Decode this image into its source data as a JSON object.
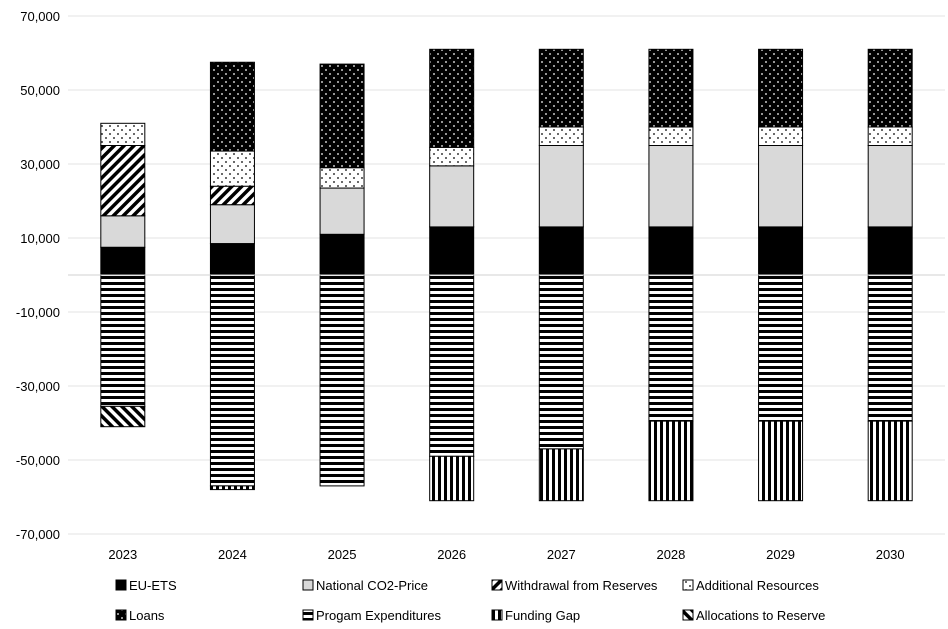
{
  "chart_data": {
    "type": "bar",
    "stacked": true,
    "categories": [
      "2023",
      "2024",
      "2025",
      "2026",
      "2027",
      "2028",
      "2029",
      "2030"
    ],
    "ylim": [
      -70000,
      70000
    ],
    "yticks": [
      70000,
      50000,
      30000,
      10000,
      -10000,
      -30000,
      -50000,
      -70000
    ],
    "ytick_labels": [
      "70,000",
      "50,000",
      "30,000",
      "10,000",
      "-10,000",
      "-30,000",
      "-50,000",
      "-70,000"
    ],
    "grid": true,
    "legend_position": "bottom",
    "series": [
      {
        "name": "EU-ETS",
        "pattern": "solid-black",
        "values": [
          7500,
          8500,
          11000,
          13000,
          13000,
          13000,
          13000,
          13000
        ]
      },
      {
        "name": "National CO2-Price",
        "pattern": "solid-grey",
        "values": [
          8500,
          10500,
          12500,
          16500,
          22000,
          22000,
          22000,
          22000
        ]
      },
      {
        "name": "Withdrawal from Reserves",
        "pattern": "diagonal-up",
        "values": [
          19000,
          5000,
          0,
          0,
          0,
          0,
          0,
          0
        ]
      },
      {
        "name": "Additional Resources",
        "pattern": "sparse-dots",
        "values": [
          6000,
          9500,
          5500,
          5000,
          5000,
          5000,
          5000,
          5000
        ]
      },
      {
        "name": "Loans",
        "pattern": "dense-dots",
        "values": [
          0,
          24000,
          28000,
          26500,
          21000,
          21000,
          21000,
          21000
        ]
      },
      {
        "name": "Progam Expenditures",
        "pattern": "horizontal-stripes",
        "values": [
          -35500,
          -57000,
          -57000,
          -49000,
          -47000,
          -39500,
          -39500,
          -39500
        ]
      },
      {
        "name": "Funding Gap",
        "pattern": "vertical-stripes",
        "values": [
          0,
          -1000,
          0,
          -12000,
          -14000,
          -21500,
          -21500,
          -21500
        ]
      },
      {
        "name": "Allocations to Reserve",
        "pattern": "diagonal-down",
        "values": [
          -5500,
          0,
          0,
          0,
          0,
          0,
          0,
          0
        ]
      }
    ]
  }
}
